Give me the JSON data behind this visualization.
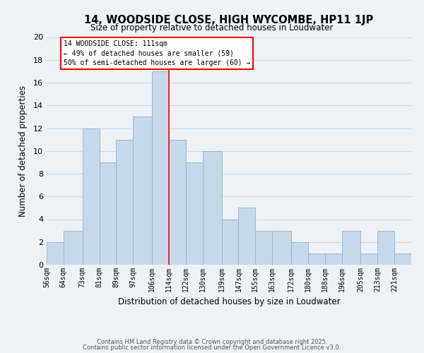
{
  "title": "14, WOODSIDE CLOSE, HIGH WYCOMBE, HP11 1JP",
  "subtitle": "Size of property relative to detached houses in Loudwater",
  "xlabel": "Distribution of detached houses by size in Loudwater",
  "ylabel": "Number of detached properties",
  "bar_color": "#c8d8eb",
  "bar_edge_color": "#9ab8d0",
  "grid_color": "#c8d8eb",
  "background_color": "#eef2f7",
  "categories": [
    "56sqm",
    "64sqm",
    "73sqm",
    "81sqm",
    "89sqm",
    "97sqm",
    "106sqm",
    "114sqm",
    "122sqm",
    "130sqm",
    "139sqm",
    "147sqm",
    "155sqm",
    "163sqm",
    "172sqm",
    "180sqm",
    "188sqm",
    "196sqm",
    "205sqm",
    "213sqm",
    "221sqm"
  ],
  "values": [
    2,
    3,
    12,
    9,
    11,
    13,
    17,
    11,
    9,
    10,
    4,
    5,
    3,
    3,
    2,
    1,
    1,
    3,
    1,
    3,
    1
  ],
  "ylim": [
    0,
    20
  ],
  "yticks": [
    0,
    2,
    4,
    6,
    8,
    10,
    12,
    14,
    16,
    18,
    20
  ],
  "annotation_title": "14 WOODSIDE CLOSE: 111sqm",
  "annotation_line1": "← 49% of detached houses are smaller (59)",
  "annotation_line2": "50% of semi-detached houses are larger (60) →",
  "footer_line1": "Contains HM Land Registry data © Crown copyright and database right 2025.",
  "footer_line2": "Contains public sector information licensed under the Open Government Licence v3.0.",
  "bin_edges": [
    56,
    64,
    73,
    81,
    89,
    97,
    106,
    114,
    122,
    130,
    139,
    147,
    155,
    163,
    172,
    180,
    188,
    196,
    205,
    213,
    221,
    229
  ],
  "red_line_x": 114
}
